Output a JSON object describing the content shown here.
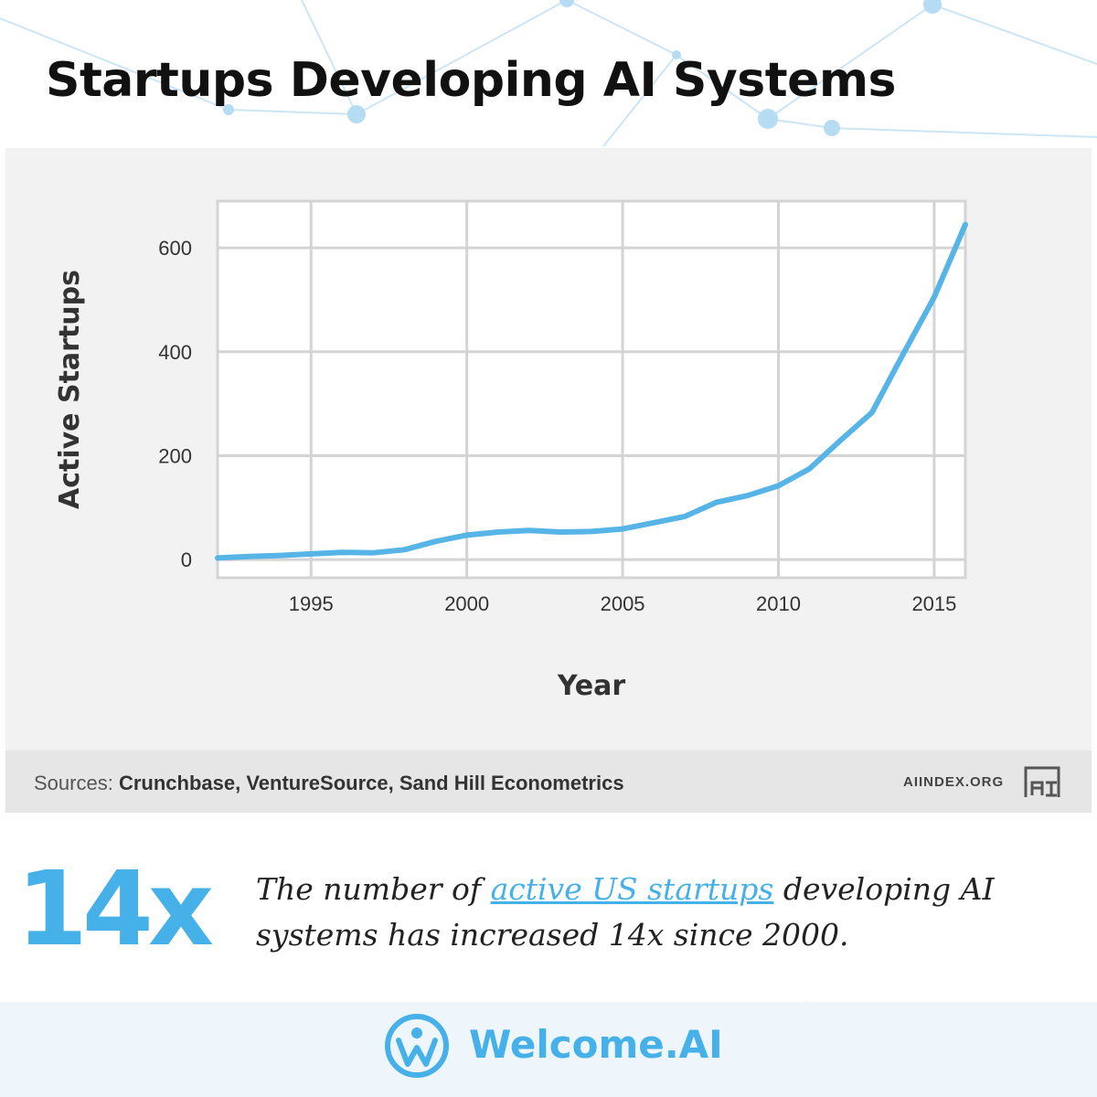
{
  "header": {
    "title": "Startups Developing AI Systems"
  },
  "colors": {
    "accent": "#45b1e8",
    "line": "#56b4e6",
    "grid": "#d4d4d4",
    "card": "#f2f2f2"
  },
  "chart_data": {
    "type": "line",
    "title": "",
    "xlabel": "Year",
    "ylabel": "Active Startups",
    "xlim": [
      1992,
      2016
    ],
    "ylim": [
      -35,
      690
    ],
    "xticks": [
      1995,
      2000,
      2005,
      2010,
      2015
    ],
    "yticks": [
      0,
      200,
      400,
      600
    ],
    "grid": true,
    "series": [
      {
        "x": [
          1992,
          1993,
          1994,
          1995,
          1996,
          1997,
          1998,
          1999,
          2000,
          2001,
          2002,
          2003,
          2004,
          2005,
          2006,
          2007,
          2008,
          2009,
          2010,
          2011,
          2012,
          2013,
          2014,
          2015,
          2016
        ],
        "y": [
          3,
          6,
          8,
          11,
          14,
          13,
          19,
          35,
          47,
          53,
          56,
          53,
          54,
          59,
          71,
          83,
          110,
          123,
          142,
          175,
          230,
          283,
          395,
          505,
          645
        ]
      }
    ]
  },
  "source": {
    "prefix": "Sources:",
    "names": "Crunchbase, VentureSource, Sand Hill Econometrics",
    "site": "AIINDEX.ORG"
  },
  "stat": {
    "number": "14x",
    "text_before": "The number of ",
    "link_text": "active US startups",
    "text_after": " developing AI systems has increased 14x since 2000."
  },
  "footer": {
    "brand": "Welcome.AI"
  }
}
